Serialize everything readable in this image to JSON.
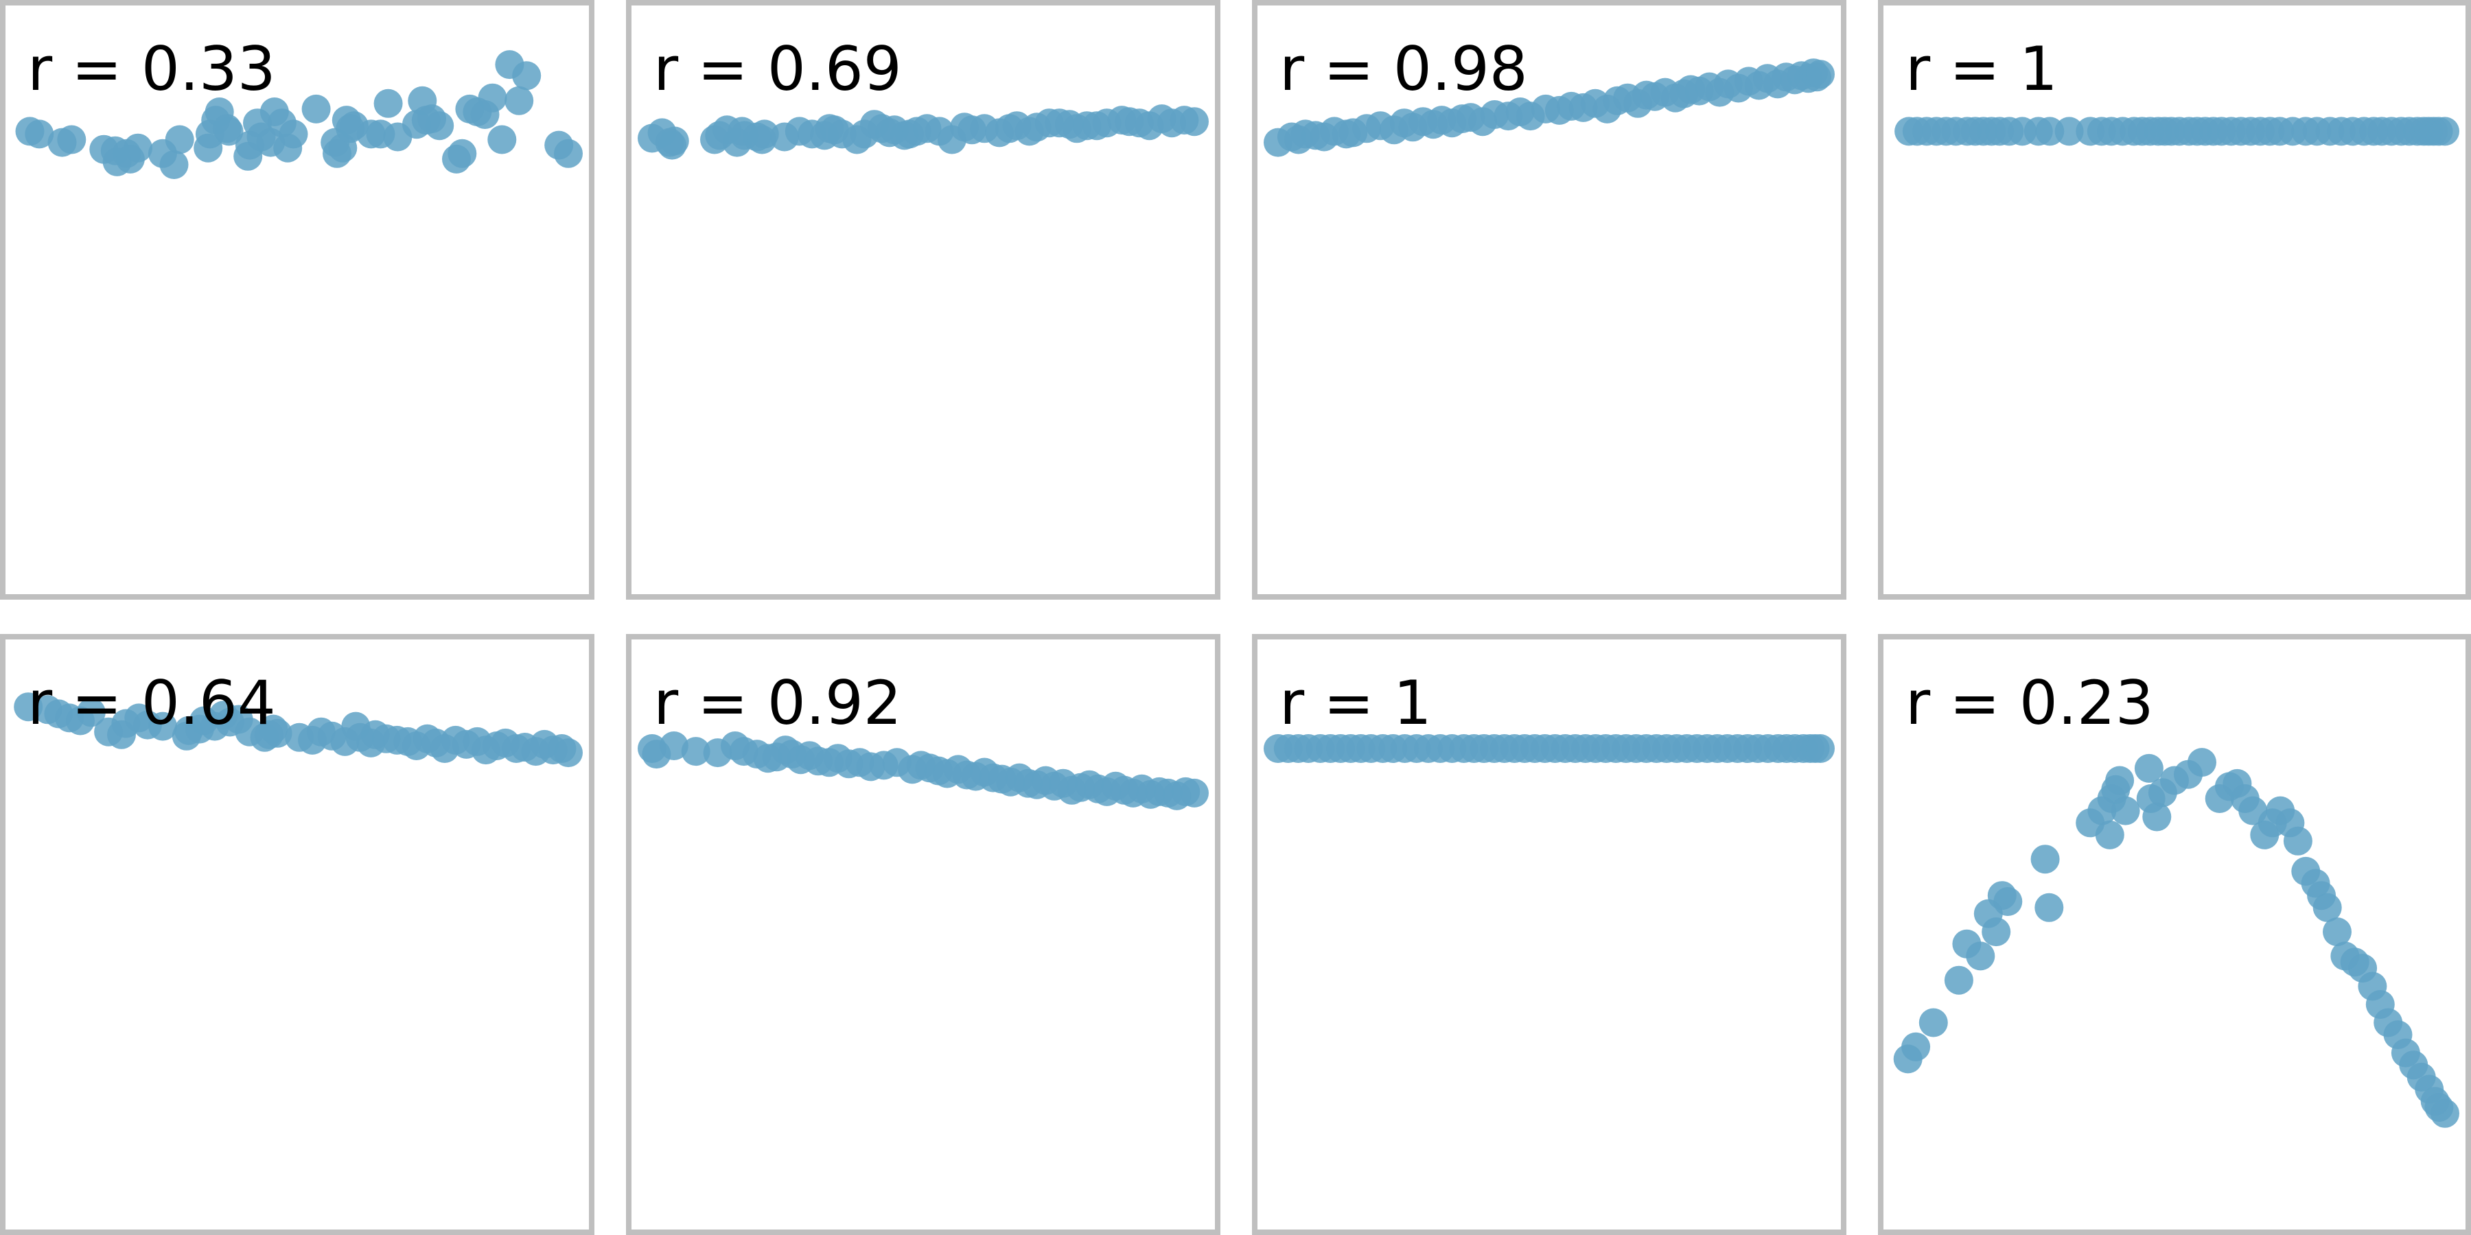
{
  "chart_data": [
    {
      "type": "scatter",
      "label": "r = 0.33",
      "color": "#5fa2c6",
      "x": [
        0.2,
        0.7,
        2.4,
        1.9,
        4.1,
        4.7,
        5.3,
        4.8,
        5.9,
        5.5,
        8.1,
        7.2,
        7.8,
        9.7,
        10.0,
        10.2,
        10.6,
        9.6,
        10.7,
        11.7,
        11.8,
        12.2,
        12.9,
        12.4,
        13.1,
        13.5,
        14.1,
        13.8,
        16.3,
        15.3,
        16.7,
        16.4,
        16.9,
        17.3,
        17.1,
        18.2,
        18.7,
        19.6,
        20.6,
        20.9,
        19.1,
        21.1,
        21.4,
        21.8,
        22.7,
        23.4,
        23.8,
        24.2,
        23.0,
        25.1,
        24.6,
        25.5,
        26.4,
        26.0,
        28.1,
        28.6
      ],
      "y": [
        6.0,
        5.9,
        5.7,
        5.6,
        5.35,
        5.3,
        5.2,
        4.9,
        5.4,
        5.0,
        5.7,
        5.2,
        4.8,
        5.9,
        6.4,
        6.7,
        6.1,
        5.4,
        6.0,
        5.1,
        5.5,
        6.3,
        5.6,
        5.8,
        6.7,
        6.3,
        5.9,
        5.4,
        5.6,
        6.8,
        5.4,
        5.2,
        6.4,
        6.2,
        6.1,
        5.9,
        5.9,
        5.8,
        6.25,
        7.1,
        7.0,
        6.4,
        6.45,
        6.2,
        5.0,
        6.8,
        6.7,
        6.6,
        5.2,
        5.7,
        7.2,
        8.4,
        8.0,
        7.1,
        5.5,
        5.2
      ]
    },
    {
      "type": "scatter",
      "label": "r = 0.69",
      "color": "#5fa2c6",
      "x": [
        0.0,
        0.4,
        0.7,
        0.8,
        0.9,
        2.5,
        2.7,
        3.0,
        3.4,
        3.6,
        3.7,
        4.2,
        4.4,
        4.5,
        5.3,
        5.9,
        6.4,
        6.9,
        7.1,
        7.3,
        7.6,
        8.2,
        8.5,
        8.9,
        9.2,
        9.5,
        9.7,
        10.1,
        10.3,
        10.6,
        11.0,
        11.5,
        12.0,
        12.5,
        12.8,
        13.3,
        13.9,
        14.3,
        14.6,
        15.1,
        15.4,
        15.9,
        16.3,
        16.7,
        17.0,
        17.4,
        17.8,
        18.2,
        18.8,
        19.1,
        19.5,
        19.9,
        20.4,
        20.8,
        21.3,
        21.7
      ],
      "y": [
        5.75,
        5.95,
        5.6,
        5.5,
        5.65,
        5.7,
        5.85,
        6.05,
        5.6,
        6.0,
        5.85,
        5.8,
        5.7,
        5.9,
        5.8,
        6.0,
        5.9,
        5.85,
        6.1,
        6.05,
        5.9,
        5.7,
        5.9,
        6.25,
        6.1,
        5.95,
        6.05,
        5.85,
        5.9,
        6.0,
        6.1,
        6.0,
        5.7,
        6.15,
        6.05,
        6.1,
        5.95,
        6.1,
        6.2,
        6.0,
        6.15,
        6.3,
        6.3,
        6.25,
        6.1,
        6.2,
        6.2,
        6.3,
        6.4,
        6.35,
        6.3,
        6.2,
        6.45,
        6.3,
        6.4,
        6.35
      ]
    },
    {
      "type": "scatter",
      "label": "r = 0.98",
      "color": "#5fa2c6",
      "x": [
        0.0,
        0.8,
        1.2,
        1.6,
        2.2,
        2.7,
        3.3,
        4.0,
        4.4,
        5.2,
        6.0,
        6.8,
        7.4,
        7.9,
        8.5,
        9.1,
        9.6,
        10.2,
        10.8,
        11.3,
        12.0,
        12.7,
        13.5,
        14.2,
        14.8,
        15.7,
        16.5,
        17.2,
        17.9,
        18.6,
        19.3,
        19.9,
        20.5,
        21.1,
        21.6,
        22.1,
        22.7,
        23.3,
        23.8,
        24.2,
        24.7,
        25.3,
        25.9,
        26.4,
        27.0,
        27.6,
        28.2,
        28.7,
        29.3,
        29.8,
        30.3,
        30.7,
        31.1,
        31.4,
        31.6,
        31.8
      ],
      "y": [
        5.6,
        5.8,
        5.7,
        5.9,
        5.85,
        5.8,
        6.0,
        5.9,
        5.95,
        6.1,
        6.2,
        6.05,
        6.3,
        6.15,
        6.35,
        6.25,
        6.4,
        6.3,
        6.45,
        6.5,
        6.35,
        6.6,
        6.55,
        6.7,
        6.55,
        6.8,
        6.75,
        6.9,
        6.85,
        7.0,
        6.8,
        7.1,
        7.2,
        7.0,
        7.3,
        7.25,
        7.4,
        7.2,
        7.35,
        7.5,
        7.45,
        7.6,
        7.4,
        7.7,
        7.55,
        7.8,
        7.65,
        7.9,
        7.7,
        7.95,
        7.85,
        8.0,
        7.9,
        8.1,
        7.95,
        8.05
      ]
    },
    {
      "type": "scatter",
      "label": "r = 1",
      "color": "#5fa2c6",
      "x": [
        0.3,
        0.8,
        1.4,
        2.0,
        2.6,
        3.2,
        3.9,
        4.4,
        4.9,
        5.4,
        5.9,
        6.5,
        7.3,
        8.3,
        9.0,
        10.2,
        11.5,
        12.2,
        12.8,
        13.5,
        14.2,
        14.7,
        15.2,
        15.7,
        16.1,
        16.5,
        17.0,
        17.6,
        18.1,
        18.6,
        19.1,
        19.6,
        20.2,
        20.8,
        21.4,
        22.0,
        22.6,
        23.2,
        24.0,
        24.8,
        25.5,
        26.3,
        27.0,
        27.7,
        28.4,
        29.0,
        29.5,
        30.1,
        30.7,
        31.2,
        31.7,
        32.1,
        32.4,
        32.7,
        33.0,
        33.4
      ],
      "y": [
        6.0,
        6.0,
        6.0,
        6.0,
        6.0,
        6.0,
        6.0,
        6.0,
        6.0,
        6.0,
        6.0,
        6.0,
        6.0,
        6.0,
        6.0,
        6.0,
        6.0,
        6.0,
        6.0,
        6.0,
        6.0,
        6.0,
        6.0,
        6.0,
        6.0,
        6.0,
        6.0,
        6.0,
        6.0,
        6.0,
        6.0,
        6.0,
        6.0,
        6.0,
        6.0,
        6.0,
        6.0,
        6.0,
        6.0,
        6.0,
        6.0,
        6.0,
        6.0,
        6.0,
        6.0,
        6.0,
        6.0,
        6.0,
        6.0,
        6.0,
        6.0,
        6.0,
        6.0,
        6.0,
        6.0,
        6.0
      ]
    },
    {
      "type": "scatter",
      "label": "r = 0.64",
      "color": "#5fa2c6",
      "x": [
        0.1,
        1.0,
        1.5,
        2.0,
        2.5,
        3.0,
        3.8,
        4.4,
        4.6,
        5.2,
        5.6,
        6.3,
        7.4,
        7.5,
        8.0,
        8.2,
        8.7,
        9.1,
        9.4,
        9.8,
        10.3,
        11.0,
        11.6,
        11.4,
        11.2,
        12.6,
        13.2,
        13.6,
        14.1,
        14.7,
        15.2,
        15.4,
        15.9,
        16.1,
        16.6,
        17.1,
        17.6,
        18.0,
        18.5,
        18.9,
        19.3,
        19.8,
        20.3,
        20.8,
        21.2,
        21.7,
        22.1,
        22.6,
        23.0,
        23.5,
        23.9,
        24.3,
        24.7,
        25.0
      ],
      "y": [
        8.1,
        8.0,
        7.85,
        7.7,
        7.6,
        7.9,
        7.2,
        7.1,
        7.5,
        7.7,
        7.45,
        7.4,
        7.05,
        7.25,
        7.3,
        7.6,
        7.4,
        7.8,
        7.55,
        7.65,
        7.2,
        7.0,
        7.15,
        7.3,
        7.1,
        7.0,
        6.9,
        7.2,
        7.05,
        6.85,
        7.4,
        7.0,
        6.8,
        7.1,
        6.95,
        6.9,
        6.85,
        6.7,
        6.95,
        6.8,
        6.6,
        6.9,
        6.75,
        6.85,
        6.55,
        6.7,
        6.8,
        6.6,
        6.65,
        6.5,
        6.75,
        6.55,
        6.6,
        6.45
      ]
    },
    {
      "type": "scatter",
      "label": "r = 0.92",
      "color": "#5fa2c6",
      "x": [
        0.0,
        0.2,
        1.0,
        2.0,
        3.0,
        3.8,
        4.2,
        4.8,
        5.3,
        5.7,
        6.1,
        6.4,
        6.8,
        7.2,
        7.6,
        8.1,
        8.5,
        9.0,
        9.5,
        10.0,
        10.6,
        11.2,
        11.9,
        12.3,
        12.7,
        13.1,
        13.5,
        14.0,
        14.4,
        14.8,
        15.2,
        15.6,
        16.0,
        16.4,
        16.8,
        17.2,
        17.6,
        18.0,
        18.4,
        18.8,
        19.2,
        19.6,
        20.0,
        20.4,
        20.8,
        21.2,
        21.6,
        22.0,
        22.4,
        22.8,
        23.2,
        23.6,
        24.0,
        24.4,
        24.8
      ],
      "y": [
        6.6,
        6.4,
        6.7,
        6.5,
        6.45,
        6.7,
        6.5,
        6.4,
        6.25,
        6.3,
        6.55,
        6.4,
        6.2,
        6.35,
        6.15,
        6.1,
        6.25,
        6.05,
        6.1,
        5.95,
        6.0,
        6.1,
        5.85,
        6.0,
        5.9,
        5.8,
        5.7,
        5.85,
        5.65,
        5.6,
        5.75,
        5.55,
        5.5,
        5.4,
        5.55,
        5.35,
        5.3,
        5.45,
        5.25,
        5.35,
        5.1,
        5.2,
        5.3,
        5.15,
        5.05,
        5.25,
        5.1,
        5.0,
        5.15,
        4.95,
        5.05,
        5.0,
        4.9,
        5.05,
        5.0
      ]
    },
    {
      "type": "scatter",
      "label": "r = 1",
      "color": "#5fa2c6",
      "x": [
        0.0,
        0.6,
        1.2,
        1.8,
        2.5,
        3.1,
        3.7,
        4.3,
        4.9,
        5.5,
        6.2,
        6.8,
        7.5,
        8.2,
        8.9,
        9.6,
        10.3,
        11.0,
        11.6,
        12.2,
        12.8,
        13.4,
        14.0,
        14.6,
        15.2,
        15.8,
        16.4,
        17.0,
        17.6,
        18.2,
        18.8,
        19.4,
        20.0,
        20.6,
        21.2,
        21.8,
        22.4,
        23.0,
        23.6,
        24.2,
        24.8,
        25.4,
        26.0,
        26.6,
        27.2,
        27.8,
        28.4,
        29.0,
        29.6,
        30.1,
        30.6,
        31.1,
        31.5,
        31.8,
        32.1
      ],
      "y": [
        6.6,
        6.6,
        6.6,
        6.6,
        6.6,
        6.6,
        6.6,
        6.6,
        6.6,
        6.6,
        6.6,
        6.6,
        6.6,
        6.6,
        6.6,
        6.6,
        6.6,
        6.6,
        6.6,
        6.6,
        6.6,
        6.6,
        6.6,
        6.6,
        6.6,
        6.6,
        6.6,
        6.6,
        6.6,
        6.6,
        6.6,
        6.6,
        6.6,
        6.6,
        6.6,
        6.6,
        6.6,
        6.6,
        6.6,
        6.6,
        6.6,
        6.6,
        6.6,
        6.6,
        6.6,
        6.6,
        6.6,
        6.6,
        6.6,
        6.6,
        6.6,
        6.6,
        6.6,
        6.6,
        6.6
      ]
    },
    {
      "type": "scatter",
      "label": "r = 0.23",
      "color": "#5fa2c6",
      "x": [
        0.2,
        0.6,
        1.5,
        2.8,
        3.2,
        3.9,
        4.3,
        4.7,
        5.0,
        5.3,
        7.2,
        7.4,
        9.5,
        10.1,
        10.5,
        10.6,
        10.8,
        11.0,
        11.3,
        12.5,
        12.6,
        12.9,
        13.2,
        13.8,
        14.5,
        15.2,
        16.1,
        16.6,
        17.0,
        17.4,
        17.8,
        18.4,
        18.8,
        19.2,
        19.7,
        20.1,
        20.5,
        21.0,
        21.3,
        21.6,
        22.1,
        22.5,
        23.0,
        23.4,
        23.9,
        24.3,
        24.7,
        25.2,
        25.6,
        26.0,
        26.4,
        26.8,
        27.1,
        27.3,
        27.6
      ],
      "y": [
        2.5,
        2.7,
        3.1,
        3.8,
        4.4,
        4.2,
        4.9,
        4.6,
        5.2,
        5.1,
        5.8,
        5.0,
        6.4,
        6.6,
        6.2,
        6.8,
        6.95,
        7.1,
        6.6,
        7.3,
        6.8,
        6.5,
        6.9,
        7.1,
        7.2,
        7.4,
        6.8,
        7.0,
        7.05,
        6.8,
        6.6,
        6.2,
        6.4,
        6.6,
        6.4,
        6.1,
        5.6,
        5.4,
        5.2,
        5.0,
        4.6,
        4.2,
        4.1,
        4.0,
        3.7,
        3.4,
        3.1,
        2.9,
        2.6,
        2.4,
        2.2,
        2.0,
        1.8,
        1.7,
        1.6
      ]
    }
  ]
}
